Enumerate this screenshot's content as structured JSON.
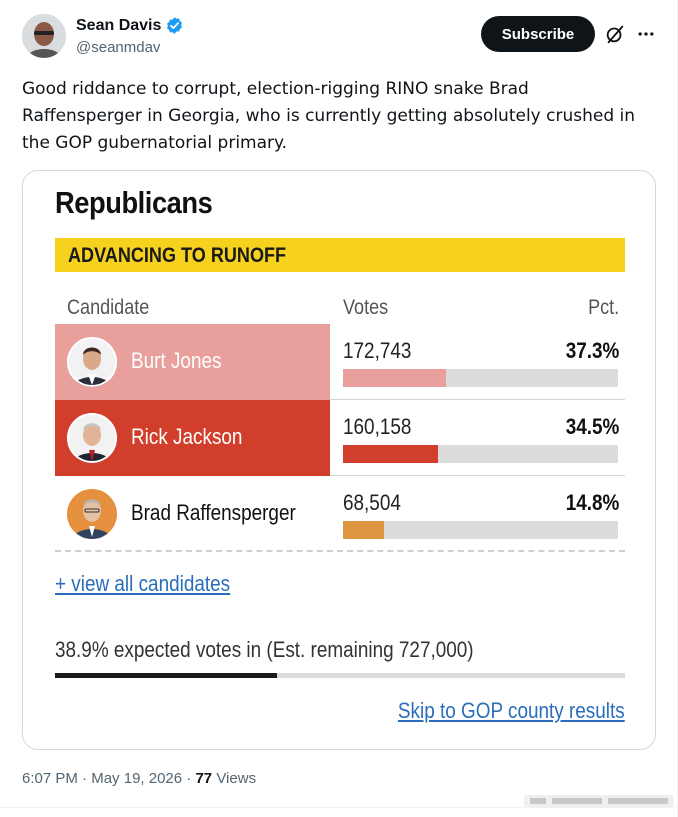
{
  "author": {
    "display_name": "Sean Davis",
    "handle": "@seanmdav",
    "verified": true,
    "verified_color": "#1d9bf0"
  },
  "actions": {
    "subscribe_label": "Subscribe",
    "grok_icon": "grok-icon",
    "more_icon": "more-dots-icon"
  },
  "tweet": {
    "text": "Good riddance to corrupt, election-rigging RINO snake Brad Raffensperger in Georgia, who is currently getting absolutely crushed in the GOP gubernatorial primary."
  },
  "results_card": {
    "title": "Republicans",
    "banner": "ADVANCING TO RUNOFF",
    "banner_color": "#f6d21f",
    "columns": {
      "candidate": "Candidate",
      "votes": "Votes",
      "pct": "Pct."
    },
    "candidates": [
      {
        "name": "Burt Jones",
        "votes": "172,743",
        "pct": "37.3%",
        "share": 0.373,
        "row_color": "#e9a09c",
        "bar_color": "#e9a09c",
        "advancing": true
      },
      {
        "name": "Rick Jackson",
        "votes": "160,158",
        "pct": "34.5%",
        "share": 0.345,
        "row_color": "#d13f2c",
        "bar_color": "#d13f2c",
        "advancing": true
      },
      {
        "name": "Brad Raffensperger",
        "votes": "68,504",
        "pct": "14.8%",
        "share": 0.148,
        "row_color": "#ffffff",
        "bar_color": "#de9641",
        "advancing": false
      }
    ],
    "view_all_label": "+ view all candidates",
    "expected_text": "38.9% expected votes in (Est. remaining 727,000)",
    "expected_share": 0.389,
    "skip_label": "Skip to GOP county results",
    "link_color": "#2a6ebb"
  },
  "meta": {
    "time": "6:07 PM",
    "date": "May 19, 2026",
    "views_count": "77",
    "views_label": "Views"
  }
}
